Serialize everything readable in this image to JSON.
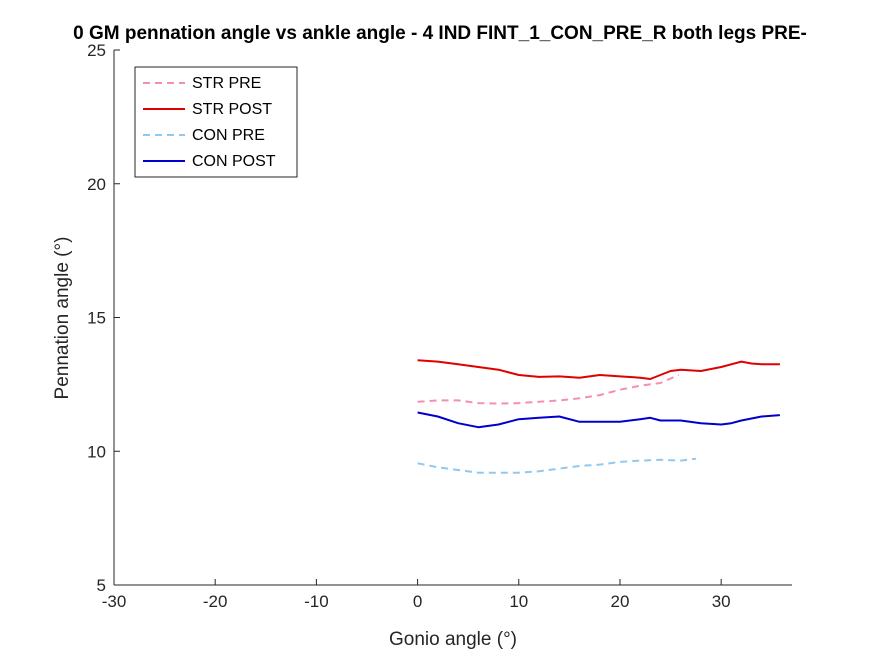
{
  "chart_data": {
    "type": "line",
    "title": "0 GM pennation angle vs ankle angle - 4 IND FINT_1_CON_PRE_R both legs PRE-",
    "xlabel": "Gonio angle (°)",
    "ylabel": "Pennation angle (°)",
    "xlim": [
      -30,
      37
    ],
    "ylim": [
      5,
      25
    ],
    "xticks": [
      -30,
      -20,
      -10,
      0,
      10,
      20,
      30
    ],
    "yticks": [
      5,
      10,
      15,
      20,
      25
    ],
    "grid": false,
    "legend_position": "top-left",
    "series": [
      {
        "name": "STR PRE",
        "color": "#f48fb1",
        "dashed": true,
        "x": [
          0,
          2,
          4,
          6,
          8,
          10,
          12,
          14,
          16,
          18,
          20,
          22,
          24,
          25.8
        ],
        "y": [
          11.85,
          11.9,
          11.9,
          11.8,
          11.78,
          11.8,
          11.85,
          11.9,
          11.98,
          12.1,
          12.3,
          12.45,
          12.55,
          12.85
        ]
      },
      {
        "name": "STR POST",
        "color": "#e00000",
        "dashed": false,
        "x": [
          0,
          2,
          4,
          6,
          8,
          10,
          12,
          14,
          16,
          18,
          20,
          22,
          23,
          24,
          25,
          26,
          28,
          30,
          31,
          32,
          33,
          34,
          35.8
        ],
        "y": [
          13.4,
          13.35,
          13.25,
          13.15,
          13.05,
          12.85,
          12.78,
          12.8,
          12.75,
          12.85,
          12.8,
          12.75,
          12.7,
          12.85,
          13.0,
          13.05,
          13.0,
          13.15,
          13.25,
          13.35,
          13.28,
          13.25,
          13.25
        ]
      },
      {
        "name": "CON PRE",
        "color": "#90c8f0",
        "dashed": true,
        "x": [
          0,
          2,
          4,
          6,
          8,
          10,
          12,
          14,
          16,
          18,
          20,
          22,
          24,
          26,
          27.5
        ],
        "y": [
          9.55,
          9.4,
          9.3,
          9.2,
          9.2,
          9.2,
          9.25,
          9.35,
          9.45,
          9.5,
          9.6,
          9.65,
          9.68,
          9.65,
          9.72
        ]
      },
      {
        "name": "CON POST",
        "color": "#0000cc",
        "dashed": false,
        "x": [
          0,
          2,
          4,
          6,
          8,
          10,
          12,
          14,
          16,
          18,
          20,
          22,
          23,
          24,
          26,
          28,
          30,
          31,
          32,
          34,
          35.8
        ],
        "y": [
          11.45,
          11.3,
          11.05,
          10.9,
          11.0,
          11.2,
          11.25,
          11.3,
          11.1,
          11.1,
          11.1,
          11.2,
          11.25,
          11.15,
          11.15,
          11.05,
          11.0,
          11.05,
          11.15,
          11.3,
          11.35
        ]
      }
    ]
  }
}
